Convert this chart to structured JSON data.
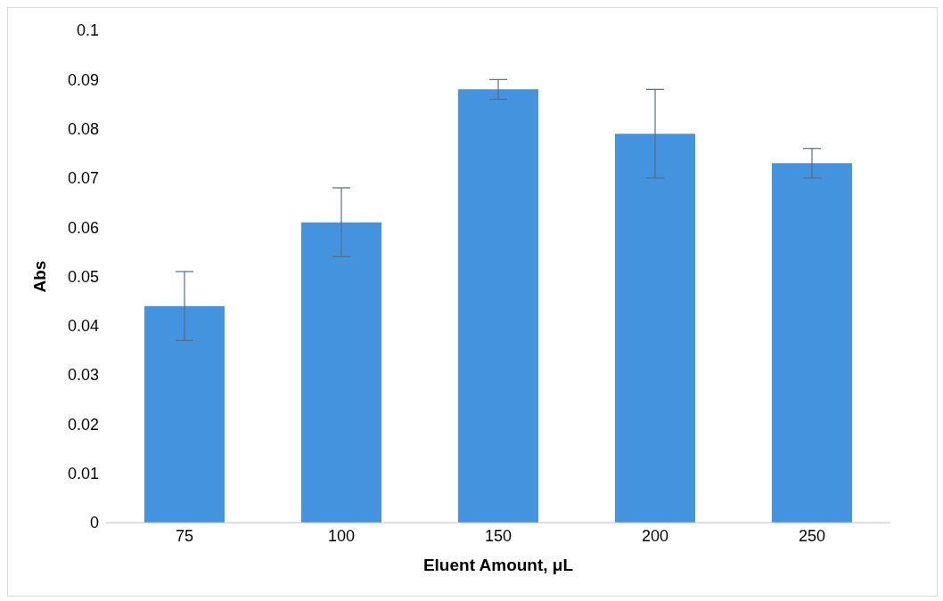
{
  "chart_data": {
    "type": "bar",
    "xlabel": "Eluent Amount, μL",
    "ylabel": "Abs",
    "categories": [
      "75",
      "100",
      "150",
      "200",
      "250"
    ],
    "values": [
      0.044,
      0.061,
      0.088,
      0.079,
      0.073
    ],
    "errors": [
      0.007,
      0.007,
      0.002,
      0.009,
      0.003
    ],
    "color": "#4393de",
    "ylim": [
      0,
      0.1
    ],
    "yticks": [
      0,
      0.01,
      0.02,
      0.03,
      0.04,
      0.05,
      0.06,
      0.07,
      0.08,
      0.09,
      0.1
    ],
    "grid": false,
    "legend": false
  }
}
